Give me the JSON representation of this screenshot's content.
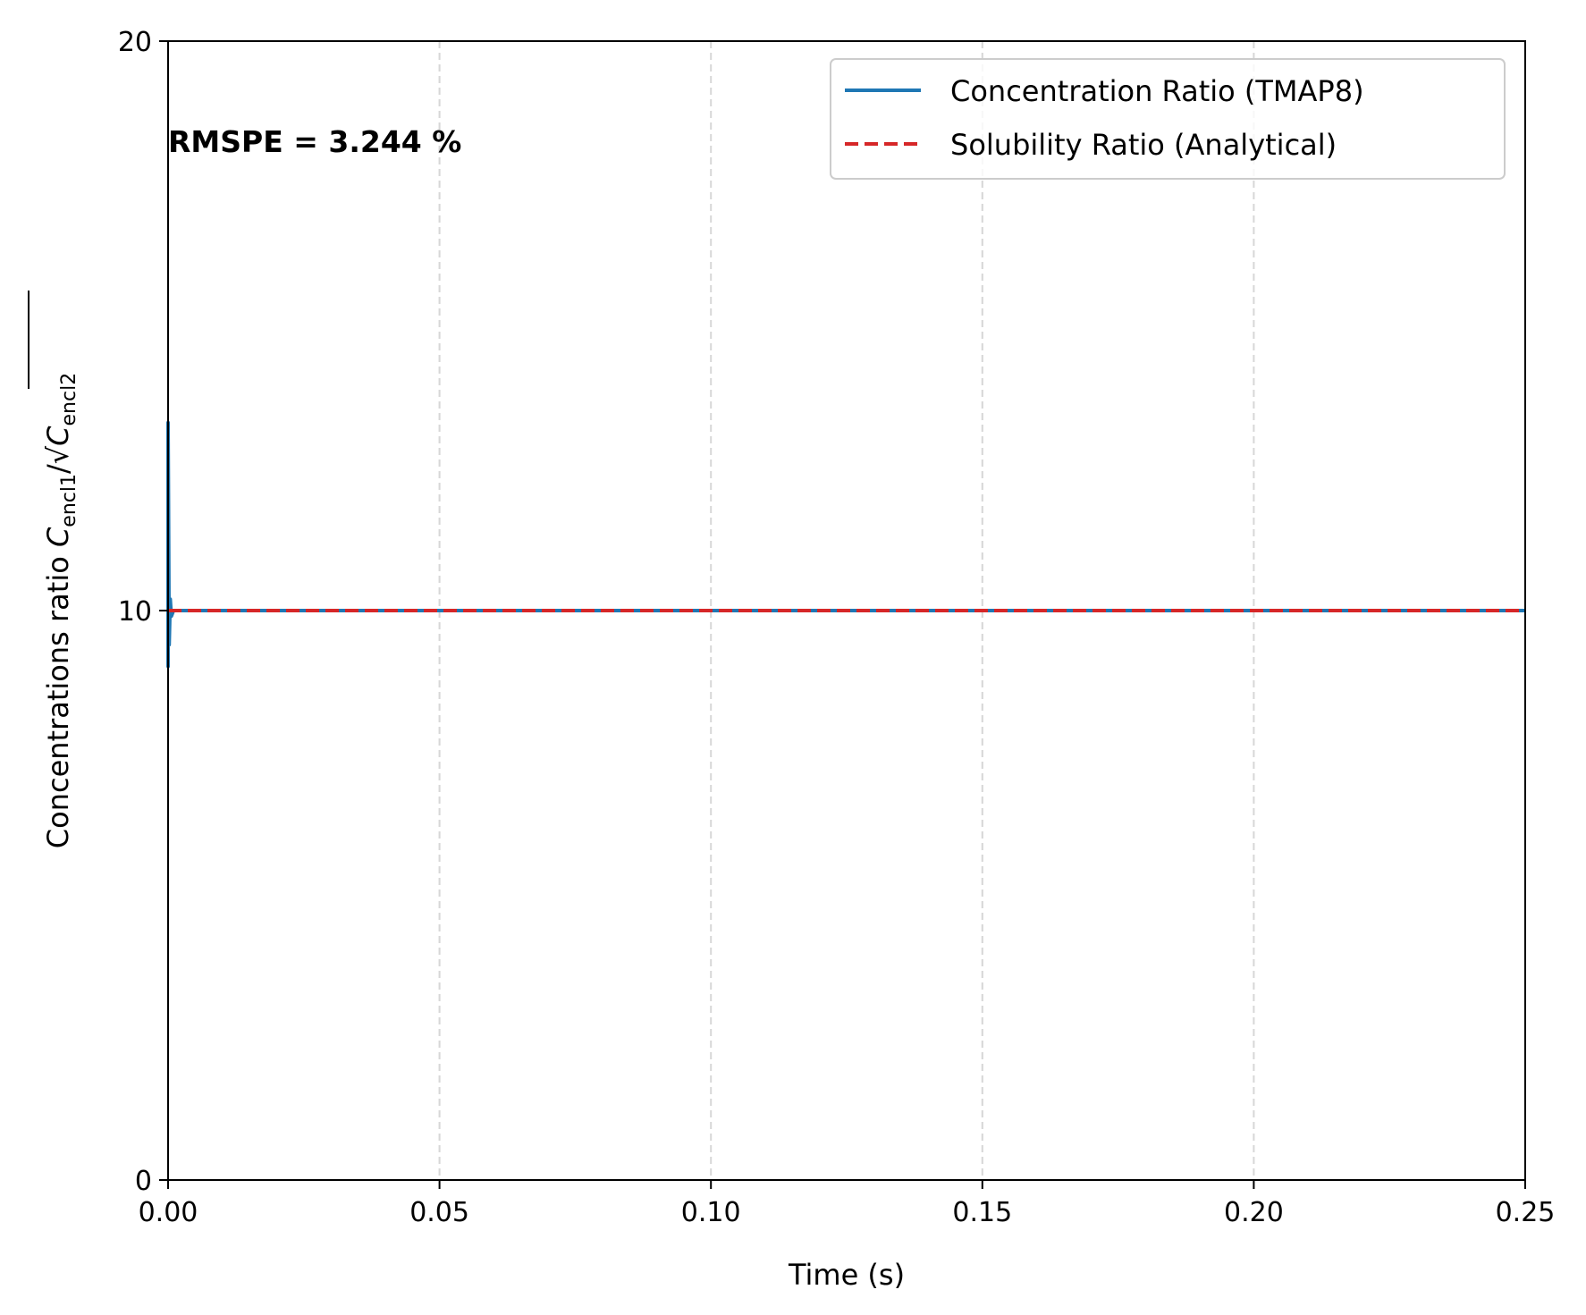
{
  "chart_data": {
    "type": "line",
    "xlabel": "Time (s)",
    "ylabel": {
      "prefix": "Concentrations ratio ",
      "c1": "C",
      "c1_sub": "encl1",
      "slash": "/√",
      "c2": "C",
      "c2_sub": "encl2"
    },
    "xlim": [
      0.0,
      0.25
    ],
    "ylim": [
      0,
      20
    ],
    "x_ticks": [
      {
        "value": 0.0,
        "label": "0.00"
      },
      {
        "value": 0.05,
        "label": "0.05"
      },
      {
        "value": 0.1,
        "label": "0.10"
      },
      {
        "value": 0.15,
        "label": "0.15"
      },
      {
        "value": 0.2,
        "label": "0.20"
      },
      {
        "value": 0.25,
        "label": "0.25"
      }
    ],
    "y_ticks": [
      {
        "value": 0,
        "label": "0"
      },
      {
        "value": 10,
        "label": "10"
      },
      {
        "value": 20,
        "label": "20"
      }
    ],
    "grid": "x-dashed",
    "legend_position": "top-right",
    "annotation": "RMSPE = 3.244 %",
    "series": [
      {
        "name": "Concentration Ratio (TMAP8)",
        "color": "#1f77b4",
        "style": "solid",
        "x": [
          0.0,
          0.0,
          0.0002,
          0.0004,
          0.0006,
          0.001,
          0.25
        ],
        "y": [
          9.0,
          13.3,
          9.4,
          10.2,
          9.9,
          10.0,
          10.0
        ]
      },
      {
        "name": "Solubility Ratio (Analytical)",
        "color": "#d62728",
        "style": "dashed",
        "x": [
          0.0,
          0.25
        ],
        "y": [
          10.0,
          10.0
        ]
      }
    ]
  }
}
